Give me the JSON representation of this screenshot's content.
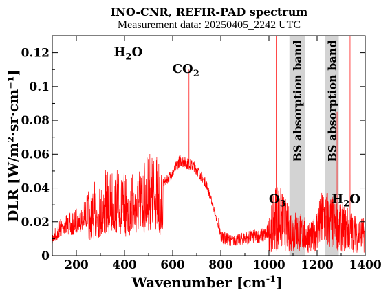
{
  "chart_data": {
    "type": "line",
    "title": "INO-CNR, REFIR-PAD spectrum",
    "subtitle": "Measurement data: 20250405_2242 UTC",
    "xlabel_main": "Wavenumber [cm",
    "xlabel_sup": "-1",
    "xlabel_tail": "]",
    "ylabel": "DLR [W/m²·sr·cm⁻¹]",
    "xlim": [
      100,
      1400
    ],
    "ylim": [
      0,
      0.13
    ],
    "x_ticks": [
      200,
      400,
      600,
      800,
      1000,
      1200,
      1400
    ],
    "x_tick_labels": [
      "200",
      "400",
      "600",
      "800",
      "1000",
      "1200",
      "1400"
    ],
    "y_ticks": [
      0,
      0.02,
      0.04,
      0.06,
      0.08,
      0.1,
      0.12
    ],
    "y_tick_labels": [
      "0",
      "0.02",
      "0.04",
      "0.06",
      "0.08",
      "0.1",
      "0.12"
    ],
    "grid": false,
    "series_color": "#ff0000",
    "band_color": "#d3d3d3",
    "absorption_bands": [
      {
        "x_range": [
          1085,
          1150
        ],
        "label": "BS absorption band"
      },
      {
        "x_range": [
          1232,
          1290
        ],
        "label": "BS absorption band"
      }
    ],
    "annotations": [
      {
        "base": "H",
        "sub": "2",
        "tail": "O",
        "x": 415,
        "y": 0.118
      },
      {
        "base": "CO",
        "sub": "2",
        "tail": "",
        "x": 655,
        "y": 0.108
      },
      {
        "base": "O",
        "sub": "3",
        "tail": "",
        "x": 1035,
        "y": 0.031
      },
      {
        "base": "H",
        "sub": "2",
        "tail": "O",
        "x": 1320,
        "y": 0.031
      }
    ],
    "envelope": {
      "x": [
        100,
        120,
        150,
        180,
        200,
        230,
        260,
        300,
        330,
        360,
        400,
        430,
        460,
        500,
        530,
        560,
        600,
        630,
        660,
        690,
        710,
        740,
        770,
        800,
        850,
        900,
        950,
        990,
        1010,
        1030,
        1050,
        1080,
        1160,
        1180,
        1200,
        1230,
        1290,
        1310,
        1330,
        1360,
        1400
      ],
      "y": [
        0.015,
        0.02,
        0.028,
        0.025,
        0.03,
        0.033,
        0.043,
        0.048,
        0.053,
        0.058,
        0.05,
        0.052,
        0.057,
        0.065,
        0.067,
        0.045,
        0.052,
        0.06,
        0.058,
        0.056,
        0.052,
        0.045,
        0.03,
        0.012,
        0.009,
        0.011,
        0.012,
        0.013,
        0.02,
        0.03,
        0.027,
        0.02,
        0.015,
        0.013,
        0.02,
        0.028,
        0.02,
        0.021,
        0.019,
        0.016,
        0.015
      ]
    },
    "spikes": [
      {
        "x": 668,
        "y": 0.11
      },
      {
        "x": 1013,
        "y": 0.13
      },
      {
        "x": 1030,
        "y": 0.13
      },
      {
        "x": 1283,
        "y": 0.085
      },
      {
        "x": 1337,
        "y": 0.13
      }
    ]
  }
}
